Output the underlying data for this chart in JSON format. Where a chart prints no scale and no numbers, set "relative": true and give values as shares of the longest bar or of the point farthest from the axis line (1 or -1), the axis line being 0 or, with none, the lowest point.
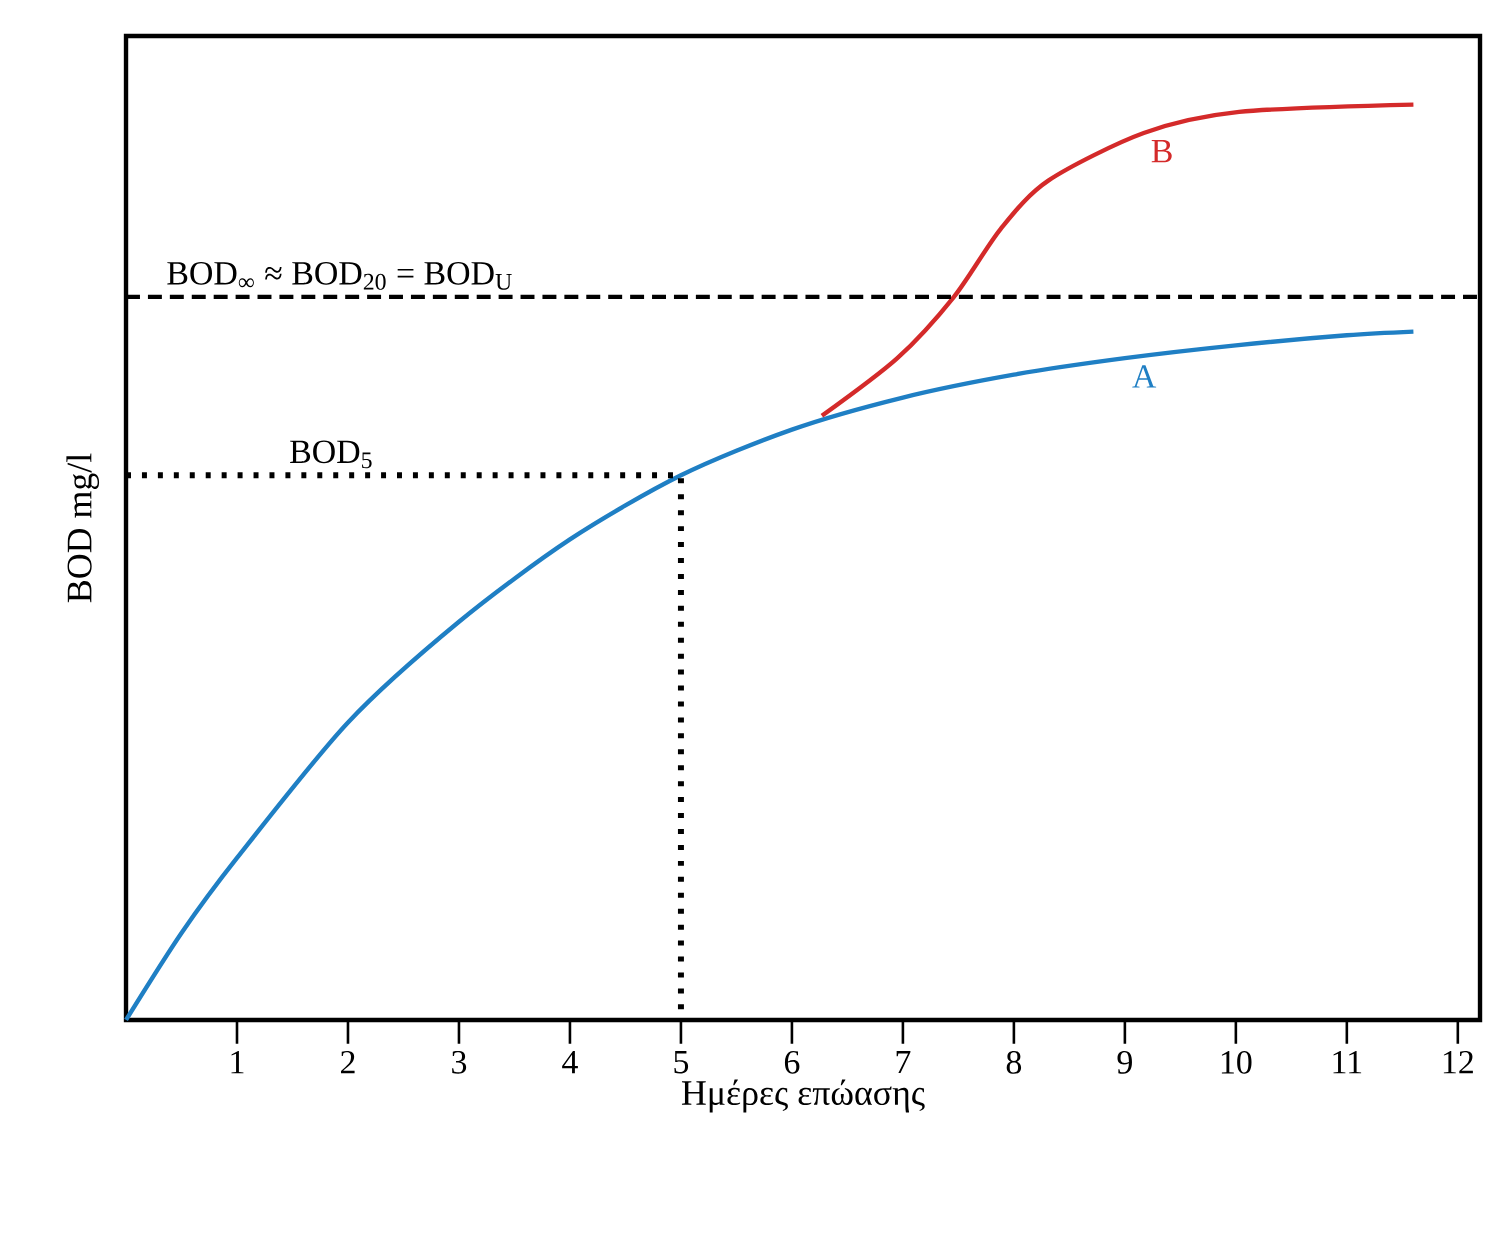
{
  "chart_data": {
    "type": "line",
    "relative": true,
    "xlabel": "Ημέρες επώασης",
    "ylabel": "BOD   mg/l",
    "xlim": [
      0,
      12.2
    ],
    "xticks": [
      1,
      2,
      3,
      4,
      5,
      6,
      7,
      8,
      9,
      10,
      11,
      12
    ],
    "series": [
      {
        "name": "A",
        "color": "#1f7fc4",
        "line_style": "solid",
        "x": [
          0,
          0.5,
          1,
          2,
          3,
          4,
          5,
          6,
          7,
          8,
          9,
          10,
          11,
          11.6
        ],
        "values": [
          0,
          0.095,
          0.177,
          0.325,
          0.435,
          0.525,
          0.595,
          0.645,
          0.68,
          0.705,
          0.723,
          0.737,
          0.748,
          0.752
        ]
      },
      {
        "name": "B",
        "color": "#d42a2a",
        "line_style": "solid",
        "x": [
          6.27,
          6.95,
          7.46,
          7.88,
          8.31,
          9.17,
          10.03,
          11.6
        ],
        "values": [
          0.66,
          0.723,
          0.79,
          0.864,
          0.917,
          0.969,
          0.992,
          1.0
        ]
      },
      {
        "name": "BOD$_{5}$",
        "color": "#000000",
        "line_style": "dotted",
        "x": [
          0,
          5,
          5
        ],
        "values": [
          0.595,
          0.595,
          0
        ]
      }
    ],
    "ref_lines": [
      {
        "axis": "y",
        "value": 0.79,
        "label": "BOD$_{∞}$ ≈ BOD$_{20}$ = BOD$_{U}$",
        "color": "#000000",
        "line_style": "dashed"
      }
    ]
  }
}
